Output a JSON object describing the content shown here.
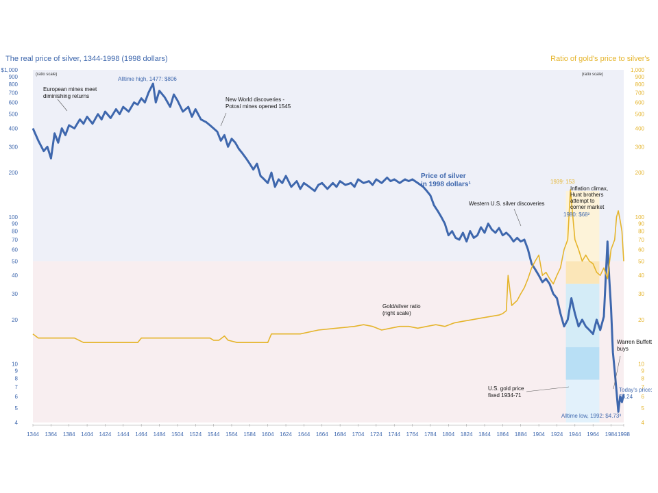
{
  "chart_data": {
    "type": "line",
    "title_left": "The real price of silver, 1344-1998 (1998 dollars)",
    "title_right": "Ratio of gold's price to silver's",
    "left_axis_note": "(ratio scale)",
    "right_axis_note": "(ratio scale)",
    "left_scale": "log",
    "right_scale": "log",
    "ylim_left": [
      4,
      1000
    ],
    "ylim_right": [
      4,
      1000
    ],
    "xlim": [
      1344,
      1998
    ],
    "left_ticks": [
      {
        "v": 1000,
        "label": "$1,000"
      },
      {
        "v": 900,
        "label": "900"
      },
      {
        "v": 800,
        "label": "800"
      },
      {
        "v": 700,
        "label": "700"
      },
      {
        "v": 600,
        "label": "600"
      },
      {
        "v": 500,
        "label": "500"
      },
      {
        "v": 400,
        "label": "400"
      },
      {
        "v": 300,
        "label": "300"
      },
      {
        "v": 200,
        "label": "200"
      },
      {
        "v": 100,
        "label": "100"
      },
      {
        "v": 90,
        "label": "90"
      },
      {
        "v": 80,
        "label": "80"
      },
      {
        "v": 70,
        "label": "70"
      },
      {
        "v": 60,
        "label": "60"
      },
      {
        "v": 50,
        "label": "50"
      },
      {
        "v": 40,
        "label": "40"
      },
      {
        "v": 30,
        "label": "30"
      },
      {
        "v": 20,
        "label": "20"
      },
      {
        "v": 10,
        "label": "10"
      },
      {
        "v": 9,
        "label": "9"
      },
      {
        "v": 8,
        "label": "8"
      },
      {
        "v": 7,
        "label": "7"
      },
      {
        "v": 6,
        "label": "6"
      },
      {
        "v": 5,
        "label": "5"
      },
      {
        "v": 4,
        "label": "4"
      }
    ],
    "right_ticks": [
      {
        "v": 1000,
        "label": "1,000"
      },
      {
        "v": 900,
        "label": "900"
      },
      {
        "v": 800,
        "label": "800"
      },
      {
        "v": 700,
        "label": "700"
      },
      {
        "v": 600,
        "label": "600"
      },
      {
        "v": 500,
        "label": "500"
      },
      {
        "v": 400,
        "label": "400"
      },
      {
        "v": 300,
        "label": "300"
      },
      {
        "v": 200,
        "label": "200"
      },
      {
        "v": 100,
        "label": "100"
      },
      {
        "v": 90,
        "label": "90"
      },
      {
        "v": 80,
        "label": "80"
      },
      {
        "v": 70,
        "label": "70"
      },
      {
        "v": 60,
        "label": "60"
      },
      {
        "v": 50,
        "label": "50"
      },
      {
        "v": 40,
        "label": "40"
      },
      {
        "v": 30,
        "label": "30"
      },
      {
        "v": 20,
        "label": "20"
      },
      {
        "v": 10,
        "label": "10"
      },
      {
        "v": 9,
        "label": "9"
      },
      {
        "v": 8,
        "label": "8"
      },
      {
        "v": 7,
        "label": "7"
      },
      {
        "v": 6,
        "label": "6"
      },
      {
        "v": 5,
        "label": "5"
      },
      {
        "v": 4,
        "label": "4"
      }
    ],
    "x_ticks": [
      "1344",
      "1364",
      "1384",
      "1404",
      "1424",
      "1444",
      "1464",
      "1484",
      "1504",
      "1524",
      "1544",
      "1564",
      "1584",
      "1604",
      "1624",
      "1644",
      "1664",
      "1684",
      "1704",
      "1724",
      "1744",
      "1764",
      "1784",
      "1804",
      "1824",
      "1844",
      "1864",
      "1884",
      "1904",
      "1924",
      "1944",
      "1964",
      "1984",
      "1998"
    ],
    "series": [
      {
        "name": "Price of silver in 1998 dollars",
        "axis": "left",
        "color": "#3e67ad",
        "points": [
          [
            1344,
            400
          ],
          [
            1350,
            330
          ],
          [
            1356,
            280
          ],
          [
            1360,
            300
          ],
          [
            1364,
            250
          ],
          [
            1368,
            370
          ],
          [
            1372,
            320
          ],
          [
            1376,
            400
          ],
          [
            1380,
            360
          ],
          [
            1384,
            420
          ],
          [
            1390,
            400
          ],
          [
            1396,
            460
          ],
          [
            1400,
            430
          ],
          [
            1404,
            480
          ],
          [
            1410,
            430
          ],
          [
            1416,
            500
          ],
          [
            1420,
            460
          ],
          [
            1424,
            520
          ],
          [
            1430,
            470
          ],
          [
            1436,
            540
          ],
          [
            1440,
            500
          ],
          [
            1444,
            560
          ],
          [
            1450,
            520
          ],
          [
            1456,
            600
          ],
          [
            1460,
            580
          ],
          [
            1464,
            640
          ],
          [
            1468,
            600
          ],
          [
            1472,
            700
          ],
          [
            1477,
            806
          ],
          [
            1480,
            600
          ],
          [
            1484,
            720
          ],
          [
            1490,
            650
          ],
          [
            1496,
            560
          ],
          [
            1500,
            680
          ],
          [
            1504,
            620
          ],
          [
            1510,
            520
          ],
          [
            1516,
            560
          ],
          [
            1520,
            480
          ],
          [
            1524,
            540
          ],
          [
            1530,
            460
          ],
          [
            1536,
            440
          ],
          [
            1540,
            420
          ],
          [
            1544,
            400
          ],
          [
            1548,
            380
          ],
          [
            1552,
            330
          ],
          [
            1556,
            360
          ],
          [
            1560,
            300
          ],
          [
            1564,
            340
          ],
          [
            1568,
            320
          ],
          [
            1572,
            290
          ],
          [
            1576,
            270
          ],
          [
            1580,
            250
          ],
          [
            1584,
            230
          ],
          [
            1588,
            210
          ],
          [
            1592,
            230
          ],
          [
            1596,
            190
          ],
          [
            1600,
            180
          ],
          [
            1604,
            170
          ],
          [
            1608,
            200
          ],
          [
            1612,
            160
          ],
          [
            1616,
            180
          ],
          [
            1620,
            170
          ],
          [
            1624,
            190
          ],
          [
            1630,
            160
          ],
          [
            1636,
            175
          ],
          [
            1640,
            155
          ],
          [
            1644,
            170
          ],
          [
            1650,
            160
          ],
          [
            1656,
            150
          ],
          [
            1660,
            165
          ],
          [
            1664,
            170
          ],
          [
            1670,
            155
          ],
          [
            1676,
            170
          ],
          [
            1680,
            160
          ],
          [
            1684,
            175
          ],
          [
            1690,
            165
          ],
          [
            1696,
            170
          ],
          [
            1700,
            160
          ],
          [
            1704,
            180
          ],
          [
            1710,
            170
          ],
          [
            1716,
            175
          ],
          [
            1720,
            165
          ],
          [
            1724,
            180
          ],
          [
            1730,
            170
          ],
          [
            1736,
            185
          ],
          [
            1740,
            175
          ],
          [
            1744,
            180
          ],
          [
            1750,
            170
          ],
          [
            1756,
            180
          ],
          [
            1760,
            175
          ],
          [
            1764,
            180
          ],
          [
            1770,
            170
          ],
          [
            1776,
            160
          ],
          [
            1780,
            150
          ],
          [
            1784,
            140
          ],
          [
            1788,
            120
          ],
          [
            1792,
            110
          ],
          [
            1796,
            100
          ],
          [
            1800,
            90
          ],
          [
            1804,
            75
          ],
          [
            1808,
            80
          ],
          [
            1812,
            72
          ],
          [
            1816,
            70
          ],
          [
            1820,
            78
          ],
          [
            1824,
            68
          ],
          [
            1828,
            80
          ],
          [
            1832,
            72
          ],
          [
            1836,
            75
          ],
          [
            1840,
            85
          ],
          [
            1844,
            78
          ],
          [
            1848,
            90
          ],
          [
            1852,
            82
          ],
          [
            1856,
            78
          ],
          [
            1860,
            84
          ],
          [
            1864,
            75
          ],
          [
            1868,
            78
          ],
          [
            1872,
            74
          ],
          [
            1876,
            68
          ],
          [
            1880,
            72
          ],
          [
            1884,
            68
          ],
          [
            1888,
            70
          ],
          [
            1892,
            60
          ],
          [
            1896,
            48
          ],
          [
            1900,
            44
          ],
          [
            1904,
            40
          ],
          [
            1908,
            36
          ],
          [
            1912,
            38
          ],
          [
            1916,
            35
          ],
          [
            1920,
            30
          ],
          [
            1924,
            28
          ],
          [
            1928,
            22
          ],
          [
            1932,
            18
          ],
          [
            1936,
            20
          ],
          [
            1940,
            28
          ],
          [
            1944,
            22
          ],
          [
            1948,
            18
          ],
          [
            1952,
            20
          ],
          [
            1956,
            18
          ],
          [
            1960,
            17
          ],
          [
            1964,
            16
          ],
          [
            1968,
            20
          ],
          [
            1972,
            17
          ],
          [
            1976,
            21
          ],
          [
            1980,
            68
          ],
          [
            1982,
            38
          ],
          [
            1984,
            24
          ],
          [
            1986,
            12
          ],
          [
            1988,
            9
          ],
          [
            1990,
            6.5
          ],
          [
            1992,
            4.73
          ],
          [
            1994,
            6
          ],
          [
            1996,
            5.5
          ],
          [
            1998,
            6.24
          ]
        ]
      },
      {
        "name": "Gold/silver ratio",
        "axis": "right",
        "color": "#e5b42a",
        "points": [
          [
            1344,
            16
          ],
          [
            1350,
            15
          ],
          [
            1360,
            15
          ],
          [
            1370,
            15
          ],
          [
            1380,
            15
          ],
          [
            1390,
            15
          ],
          [
            1400,
            14
          ],
          [
            1420,
            14
          ],
          [
            1440,
            14
          ],
          [
            1460,
            14
          ],
          [
            1464,
            15
          ],
          [
            1480,
            15
          ],
          [
            1500,
            15
          ],
          [
            1520,
            15
          ],
          [
            1540,
            15
          ],
          [
            1544,
            14.5
          ],
          [
            1550,
            14.5
          ],
          [
            1556,
            15.5
          ],
          [
            1560,
            14.5
          ],
          [
            1570,
            14
          ],
          [
            1580,
            14
          ],
          [
            1590,
            14
          ],
          [
            1600,
            14
          ],
          [
            1604,
            14
          ],
          [
            1608,
            16
          ],
          [
            1620,
            16
          ],
          [
            1640,
            16
          ],
          [
            1660,
            17
          ],
          [
            1680,
            17.5
          ],
          [
            1700,
            18
          ],
          [
            1710,
            18.5
          ],
          [
            1720,
            18
          ],
          [
            1730,
            17
          ],
          [
            1740,
            17.5
          ],
          [
            1750,
            18
          ],
          [
            1760,
            18
          ],
          [
            1770,
            17.5
          ],
          [
            1780,
            18
          ],
          [
            1790,
            18.5
          ],
          [
            1800,
            18
          ],
          [
            1810,
            19
          ],
          [
            1820,
            19.5
          ],
          [
            1830,
            20
          ],
          [
            1840,
            20.5
          ],
          [
            1850,
            21
          ],
          [
            1860,
            21.5
          ],
          [
            1864,
            22
          ],
          [
            1868,
            23
          ],
          [
            1870,
            40
          ],
          [
            1874,
            25
          ],
          [
            1880,
            27
          ],
          [
            1884,
            30
          ],
          [
            1888,
            33
          ],
          [
            1892,
            38
          ],
          [
            1896,
            45
          ],
          [
            1900,
            50
          ],
          [
            1904,
            55
          ],
          [
            1908,
            40
          ],
          [
            1912,
            42
          ],
          [
            1916,
            38
          ],
          [
            1920,
            35
          ],
          [
            1924,
            40
          ],
          [
            1928,
            45
          ],
          [
            1932,
            60
          ],
          [
            1936,
            70
          ],
          [
            1939,
            153
          ],
          [
            1944,
            70
          ],
          [
            1948,
            60
          ],
          [
            1952,
            50
          ],
          [
            1956,
            55
          ],
          [
            1960,
            50
          ],
          [
            1964,
            48
          ],
          [
            1968,
            42
          ],
          [
            1972,
            40
          ],
          [
            1976,
            45
          ],
          [
            1980,
            38
          ],
          [
            1984,
            60
          ],
          [
            1988,
            70
          ],
          [
            1990,
            100
          ],
          [
            1992,
            110
          ],
          [
            1994,
            95
          ],
          [
            1996,
            80
          ],
          [
            1998,
            50
          ]
        ]
      }
    ],
    "annotations": {
      "alltime_high": "Alltime high, 1477: $806",
      "european": "European mines meet\ndiminishing returns",
      "new_world": "New World discoveries -\nPotosí mines opened 1545",
      "price_label": "Price of silver\nin 1998 dollars¹",
      "western": "Western U.S. silver discoveries",
      "peak_1939": "1939: 153",
      "inflation": "Inflation climax,\nHunt brothers\nattempt to\ncorner market",
      "r1980": "1980: $68²",
      "ratio_label": "Gold/silver ratio\n(right scale)",
      "us_gold": "U.S. gold price\nfixed 1934-71",
      "buffett": "Warren Buffett\nbuys",
      "todays": "Today's price:\n$6.24",
      "alltime_low": "Alltime low, 1992: $4.73³"
    },
    "grid": false,
    "legend": "none"
  }
}
